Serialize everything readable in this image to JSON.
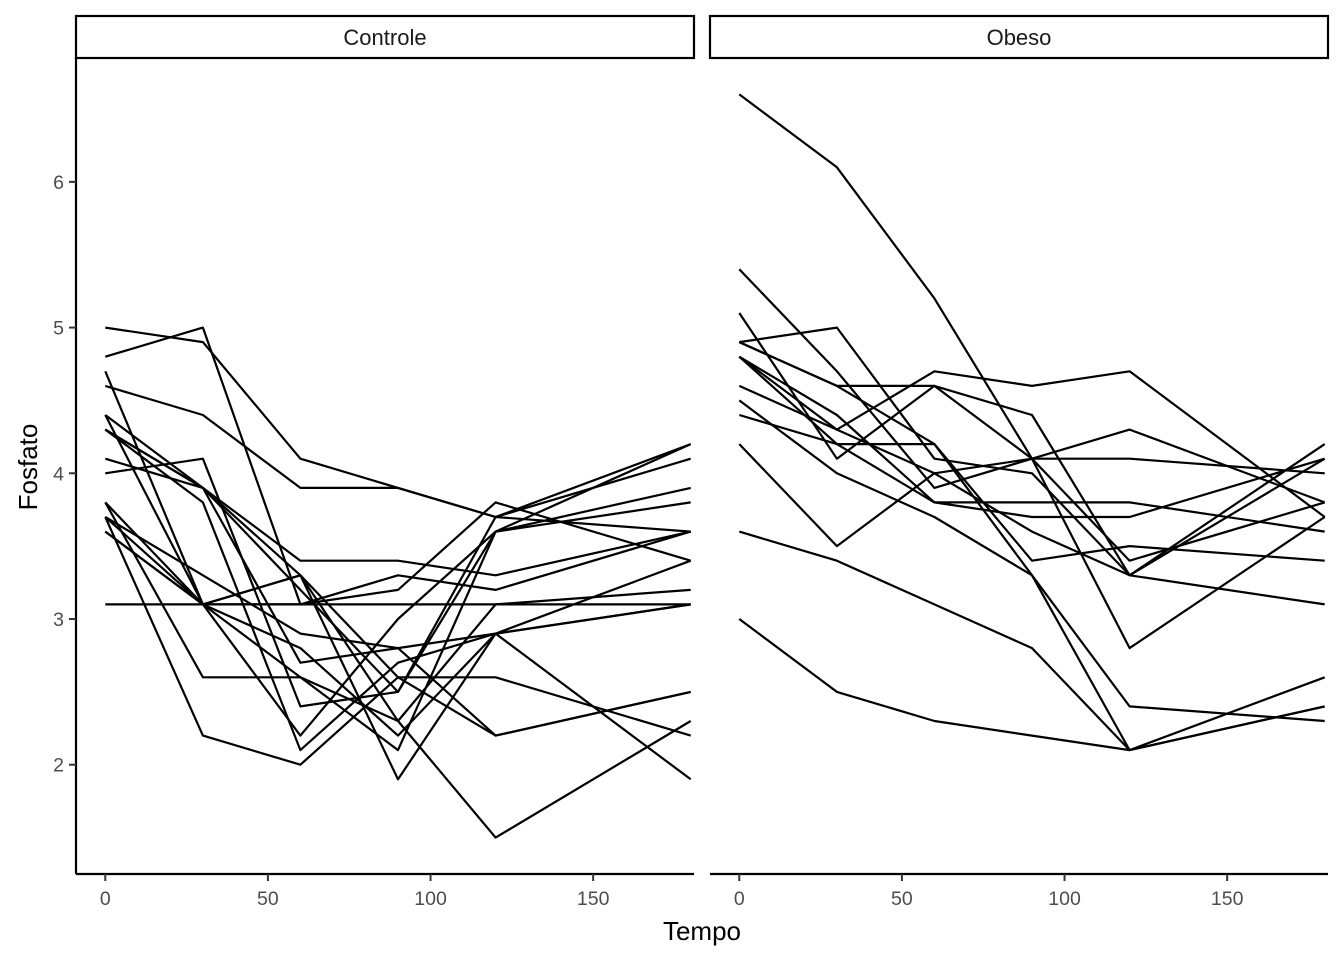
{
  "chart_data": {
    "type": "line",
    "xlabel": "Tempo",
    "ylabel": "Fosfato",
    "x": [
      0,
      30,
      60,
      90,
      120,
      180
    ],
    "xlim": [
      -9,
      181
    ],
    "ylim": [
      1.25,
      6.85
    ],
    "xticks": [
      0,
      50,
      100,
      150
    ],
    "yticks": [
      2,
      3,
      4,
      5,
      6
    ],
    "grid": false,
    "facets": [
      {
        "label": "Controle",
        "series": [
          {
            "values": [
              5.0,
              4.9,
              4.1,
              3.9,
              3.7,
              3.6
            ]
          },
          {
            "values": [
              4.8,
              5.0,
              3.1,
              3.2,
              3.8,
              3.4
            ]
          },
          {
            "values": [
              4.7,
              3.1,
              2.2,
              3.0,
              3.6,
              4.2
            ]
          },
          {
            "values": [
              4.6,
              4.4,
              3.9,
              3.9,
              3.7,
              4.2
            ]
          },
          {
            "values": [
              4.4,
              3.9,
              3.3,
              2.6,
              2.2,
              2.5
            ]
          },
          {
            "values": [
              4.3,
              3.8,
              2.1,
              2.7,
              2.9,
              3.1
            ]
          },
          {
            "values": [
              4.3,
              3.9,
              3.2,
              2.5,
              3.7,
              4.1
            ]
          },
          {
            "values": [
              4.1,
              3.9,
              3.4,
              3.4,
              3.3,
              3.6
            ]
          },
          {
            "values": [
              4.0,
              4.1,
              2.4,
              2.5,
              3.6,
              3.9
            ]
          },
          {
            "values": [
              3.8,
              2.6,
              2.6,
              2.1,
              3.6,
              3.8
            ]
          },
          {
            "values": [
              3.8,
              3.1,
              2.8,
              2.2,
              2.9,
              3.4
            ]
          },
          {
            "values": [
              3.7,
              3.3,
              2.9,
              2.8,
              2.9,
              3.1
            ]
          },
          {
            "values": [
              3.7,
              3.1,
              2.6,
              2.3,
              3.1,
              3.2
            ]
          },
          {
            "values": [
              3.7,
              2.2,
              2.0,
              2.6,
              2.6,
              2.2
            ]
          },
          {
            "values": [
              3.6,
              3.1,
              3.3,
              1.9,
              2.9,
              1.9
            ]
          },
          {
            "values": [
              3.6,
              3.1,
              3.3,
              2.3,
              1.5,
              2.3
            ]
          },
          {
            "values": [
              4.4,
              3.1,
              3.1,
              3.3,
              3.2,
              3.6
            ]
          },
          {
            "values": [
              4.3,
              3.9,
              2.7,
              2.8,
              2.2,
              2.5
            ]
          },
          {
            "values": [
              3.1,
              3.1,
              3.1,
              3.1,
              3.1,
              3.1
            ]
          }
        ]
      },
      {
        "label": "Obeso",
        "series": [
          {
            "values": [
              6.6,
              6.1,
              5.2,
              4.1,
              3.4,
              3.8
            ]
          },
          {
            "values": [
              5.4,
              4.7,
              3.9,
              4.1,
              2.8,
              3.7
            ]
          },
          {
            "values": [
              5.1,
              4.1,
              4.6,
              4.4,
              3.3,
              4.1
            ]
          },
          {
            "values": [
              4.9,
              5.0,
              4.1,
              4.0,
              3.3,
              4.2
            ]
          },
          {
            "values": [
              4.8,
              4.4,
              3.8,
              3.8,
              3.8,
              3.6
            ]
          },
          {
            "values": [
              4.9,
              4.6,
              4.6,
              4.1,
              4.1,
              4.0
            ]
          },
          {
            "values": [
              4.6,
              4.3,
              4.7,
              4.6,
              4.7,
              3.7
            ]
          },
          {
            "values": [
              4.5,
              4.0,
              3.7,
              3.3,
              2.1,
              2.4
            ]
          },
          {
            "values": [
              4.8,
              4.2,
              4.2,
              3.4,
              3.5,
              3.4
            ]
          },
          {
            "values": [
              4.4,
              4.2,
              3.8,
              3.7,
              3.7,
              4.1
            ]
          },
          {
            "values": [
              4.2,
              3.5,
              4.0,
              3.6,
              3.3,
              3.1
            ]
          },
          {
            "values": [
              3.6,
              3.4,
              3.1,
              2.8,
              2.1,
              2.6
            ]
          },
          {
            "values": [
              3.0,
              2.5,
              2.3,
              2.2,
              2.1,
              2.4
            ]
          },
          {
            "values": [
              4.8,
              4.3,
              4.0,
              4.1,
              4.3,
              3.8
            ]
          },
          {
            "values": [
              4.9,
              4.6,
              4.2,
              3.3,
              2.4,
              2.3
            ]
          }
        ]
      }
    ]
  }
}
